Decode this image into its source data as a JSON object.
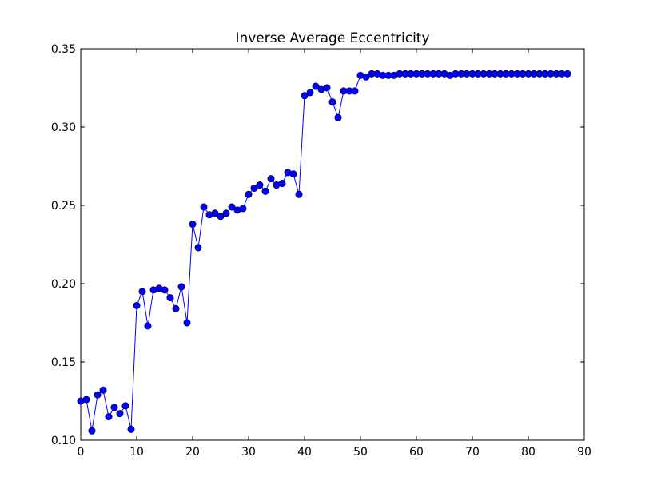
{
  "chart_data": {
    "type": "line",
    "title": "Inverse Average Eccentricity",
    "xlabel": "",
    "ylabel": "",
    "xlim": [
      0,
      90
    ],
    "ylim": [
      0.1,
      0.35
    ],
    "xticks": [
      0,
      10,
      20,
      30,
      40,
      50,
      60,
      70,
      80,
      90
    ],
    "yticks": [
      0.1,
      0.15,
      0.2,
      0.25,
      0.3,
      0.35
    ],
    "xtick_labels": [
      "0",
      "10",
      "20",
      "30",
      "40",
      "50",
      "60",
      "70",
      "80",
      "90"
    ],
    "ytick_labels": [
      "0.10",
      "0.15",
      "0.20",
      "0.25",
      "0.30",
      "0.35"
    ],
    "grid": false,
    "series": [
      {
        "color": "#0000ff",
        "marker": "circle",
        "x": [
          0,
          1,
          2,
          3,
          4,
          5,
          6,
          7,
          8,
          9,
          10,
          11,
          12,
          13,
          14,
          15,
          16,
          17,
          18,
          19,
          20,
          21,
          22,
          23,
          24,
          25,
          26,
          27,
          28,
          29,
          30,
          31,
          32,
          33,
          34,
          35,
          36,
          37,
          38,
          39,
          40,
          41,
          42,
          43,
          44,
          45,
          46,
          47,
          48,
          49,
          50,
          51,
          52,
          53,
          54,
          55,
          56,
          57,
          58,
          59,
          60,
          61,
          62,
          63,
          64,
          65,
          66,
          67,
          68,
          69,
          70,
          71,
          72,
          73,
          74,
          75,
          76,
          77,
          78,
          79,
          80,
          81,
          82,
          83,
          84,
          85,
          86,
          87
        ],
        "y": [
          0.125,
          0.126,
          0.106,
          0.129,
          0.132,
          0.115,
          0.121,
          0.117,
          0.122,
          0.107,
          0.186,
          0.195,
          0.173,
          0.196,
          0.197,
          0.196,
          0.191,
          0.184,
          0.198,
          0.175,
          0.238,
          0.223,
          0.249,
          0.244,
          0.245,
          0.243,
          0.245,
          0.249,
          0.247,
          0.248,
          0.257,
          0.261,
          0.263,
          0.259,
          0.267,
          0.263,
          0.264,
          0.271,
          0.27,
          0.257,
          0.32,
          0.322,
          0.326,
          0.324,
          0.325,
          0.316,
          0.306,
          0.323,
          0.323,
          0.323,
          0.333,
          0.332,
          0.334,
          0.334,
          0.333,
          0.333,
          0.333,
          0.334,
          0.334,
          0.334,
          0.334,
          0.334,
          0.334,
          0.334,
          0.334,
          0.334,
          0.333,
          0.334,
          0.334,
          0.334,
          0.334,
          0.334,
          0.334,
          0.334,
          0.334,
          0.334,
          0.334,
          0.334,
          0.334,
          0.334,
          0.334,
          0.334,
          0.334,
          0.334,
          0.334,
          0.334,
          0.334,
          0.334
        ]
      }
    ]
  }
}
